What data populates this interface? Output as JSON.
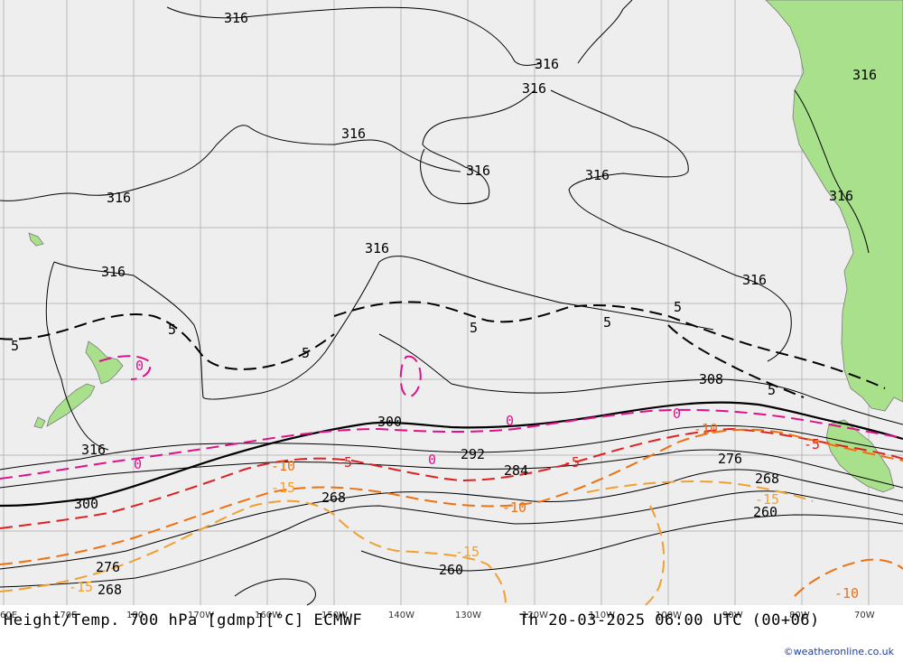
{
  "map": {
    "title": "Height/Temp. 700 hPa [gdmp][°C] ECMWF",
    "valid_time": "Th 20-03-2025 06:00 UTC (00+06)",
    "credit": "©weatheronline.co.uk",
    "colors": {
      "background": "#eeeeee",
      "land": "#a8e08c",
      "height_contour": "#000000",
      "temp_0": "#e0108a",
      "temp_minus5": "#e02020",
      "temp_minus10": "#f07010",
      "temp_minus15": "#f0a030",
      "temp_plus5": "#000000"
    },
    "longitude_labels": [
      "60E",
      "170E",
      "180",
      "170W",
      "160W",
      "150W",
      "140W",
      "130W",
      "120W",
      "110W",
      "100W",
      "90W",
      "80W",
      "70W"
    ],
    "height_labels": [
      "316",
      "316",
      "316",
      "316",
      "316",
      "316",
      "316",
      "316",
      "316",
      "316",
      "316",
      "316",
      "316",
      "308",
      "300",
      "300",
      "292",
      "284",
      "276",
      "276",
      "268",
      "268",
      "268",
      "260",
      "260"
    ],
    "temp_labels": [
      "5",
      "5",
      "5",
      "5",
      "5",
      "5",
      "5",
      "0",
      "0",
      "0",
      "0",
      "0",
      "-5",
      "-5",
      "-5",
      "-10",
      "-10",
      "-10",
      "-15",
      "-15",
      "-15",
      "-15",
      "-10"
    ]
  }
}
